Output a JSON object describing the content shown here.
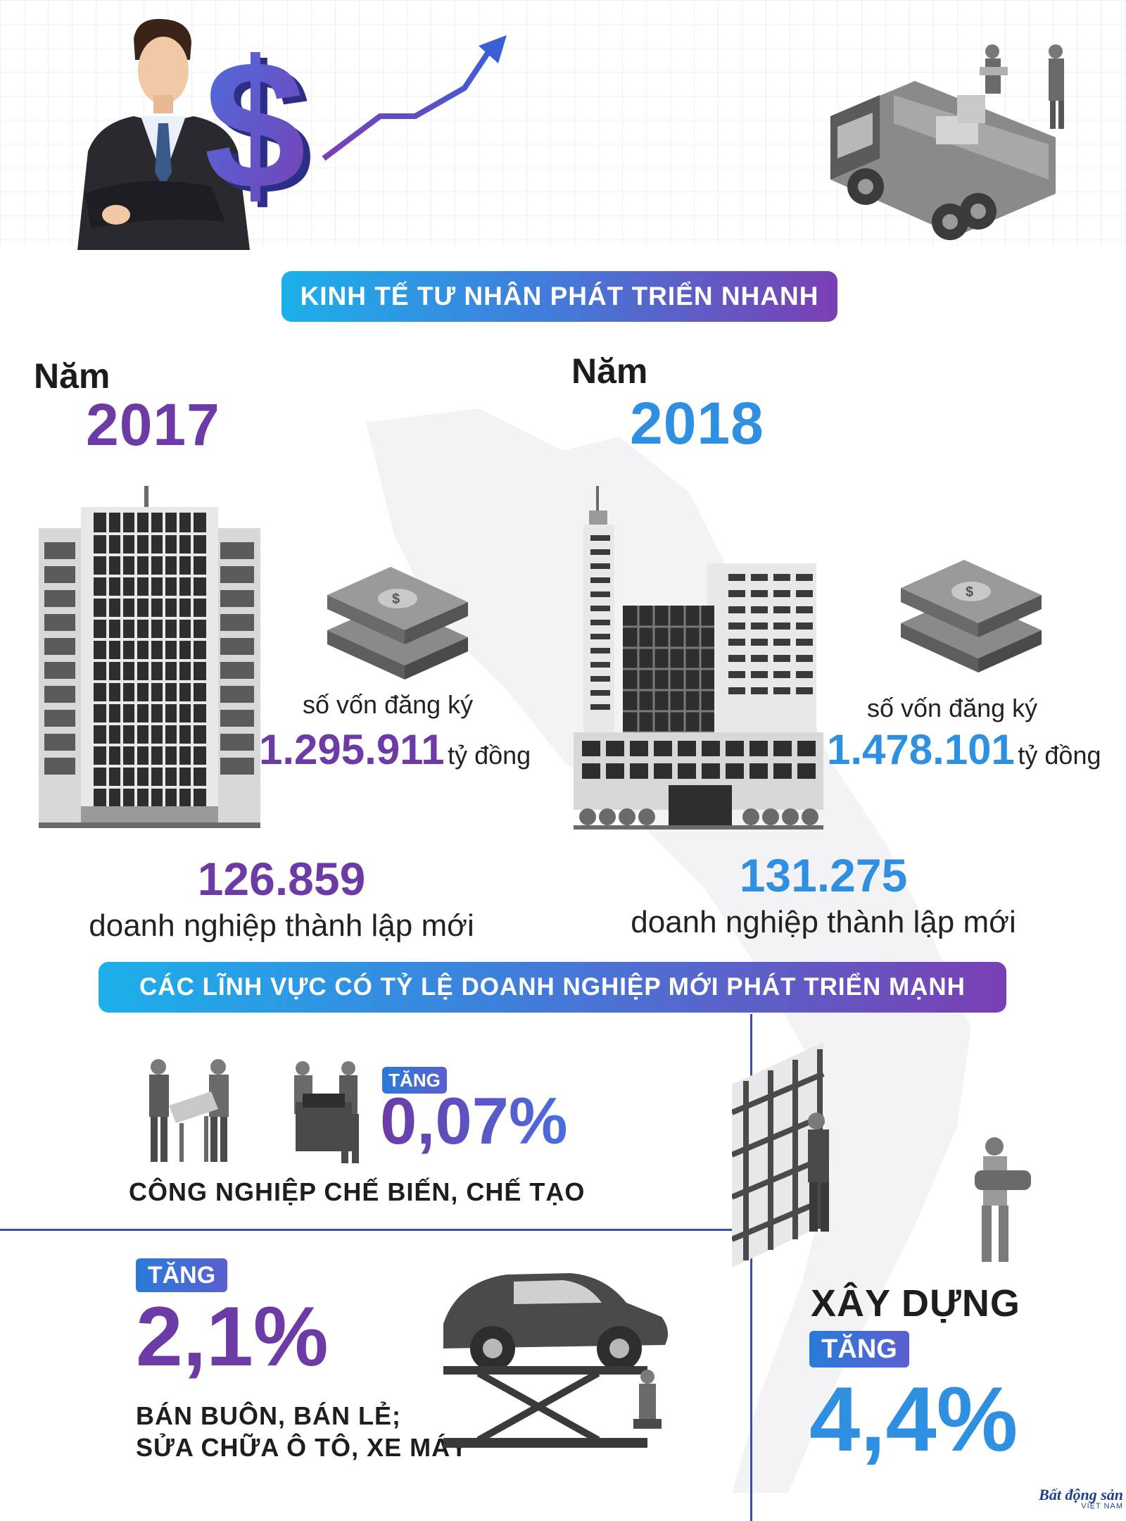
{
  "header_title": "KINH TẾ TƯ NHÂN PHÁT TRIỂN NHANH",
  "year_2017": {
    "prefix": "Năm",
    "year": "2017",
    "capital_label": "số vốn đăng ký",
    "capital_value": "1.295.911",
    "capital_unit": "tỷ đồng",
    "new_biz_value": "126.859",
    "new_biz_label": "doanh nghiệp thành lập mới"
  },
  "year_2018": {
    "prefix": "Năm",
    "year": "2018",
    "capital_label": "số vốn đăng ký",
    "capital_value": "1.478.101",
    "capital_unit": "tỷ đồng",
    "new_biz_value": "131.275",
    "new_biz_label": "doanh nghiệp thành lập mới"
  },
  "sectors_title": "CÁC LĨNH VỰC CÓ TỶ LỆ DOANH NGHIỆP MỚI PHÁT TRIỂN MẠNH",
  "sectors": [
    {
      "badge": "TĂNG",
      "percent": "0,07%",
      "name": "CÔNG NGHIỆP CHẾ BIẾN, CHẾ TẠO"
    },
    {
      "badge": "TĂNG",
      "percent": "2,1%",
      "name_line1": "BÁN BUÔN, BÁN LẺ;",
      "name_line2": "SỬA CHỮA Ô TÔ, XE MÁY"
    },
    {
      "badge": "TĂNG",
      "percent": "4,4%",
      "name": "XÂY DỰNG"
    }
  ],
  "brand": {
    "name": "Bất động sản",
    "sub": "VIỆT NAM"
  },
  "colors": {
    "purple": "#6c3ba6",
    "blue": "#2f8fe0",
    "banner_start": "#1cb0ea",
    "banner_end": "#7a3fb3"
  },
  "icons": [
    "businessman-icon",
    "dollar-sign-icon",
    "growth-arrow-icon",
    "truck-icon",
    "worker-icon",
    "office-building-icon",
    "money-stack-icon",
    "car-lift-icon",
    "scaffold-icon"
  ]
}
